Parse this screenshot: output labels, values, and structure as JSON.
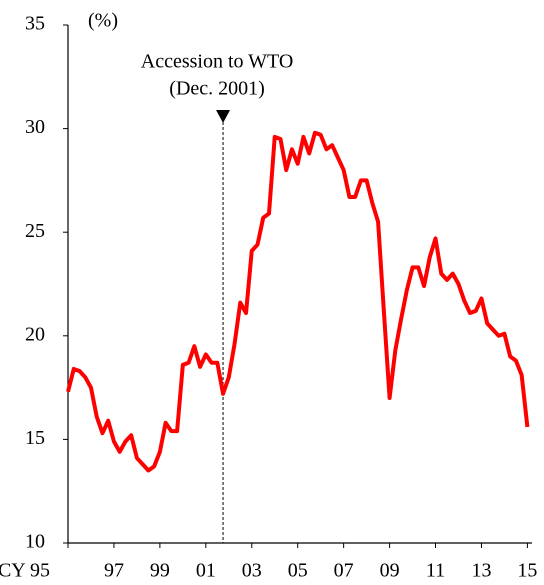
{
  "chart_data": {
    "type": "line",
    "ylabel": "(%)",
    "x": [
      1995,
      1995.25,
      1995.5,
      1995.75,
      1996,
      1996.25,
      1996.5,
      1996.75,
      1997,
      1997.25,
      1997.5,
      1997.75,
      1998,
      1998.25,
      1998.5,
      1998.75,
      1999,
      1999.25,
      1999.5,
      1999.75,
      2000,
      2000.25,
      2000.5,
      2000.75,
      2001,
      2001.25,
      2001.5,
      2001.75,
      2002,
      2002.25,
      2002.5,
      2002.75,
      2003,
      2003.25,
      2003.5,
      2003.75,
      2004,
      2004.25,
      2004.5,
      2004.75,
      2005,
      2005.25,
      2005.5,
      2005.75,
      2006,
      2006.25,
      2006.5,
      2006.75,
      2007,
      2007.25,
      2007.5,
      2007.75,
      2008,
      2008.25,
      2008.5,
      2008.75,
      2009,
      2009.25,
      2009.5,
      2009.75,
      2010,
      2010.25,
      2010.5,
      2010.75,
      2011,
      2011.25,
      2011.5,
      2011.75,
      2012,
      2012.25,
      2012.5,
      2012.75,
      2013,
      2013.25,
      2013.5,
      2013.75,
      2014,
      2014.25,
      2014.5,
      2014.75,
      2015
    ],
    "series": [
      {
        "color": "#ff0000",
        "values": [
          17.3,
          18.4,
          18.3,
          18.0,
          17.5,
          16.1,
          15.3,
          15.9,
          14.9,
          14.4,
          14.9,
          15.2,
          14.1,
          13.8,
          13.5,
          13.7,
          14.4,
          15.8,
          15.4,
          15.4,
          18.6,
          18.7,
          19.5,
          18.5,
          19.1,
          18.7,
          18.7,
          17.2,
          18.0,
          19.6,
          21.6,
          21.1,
          24.1,
          24.4,
          25.7,
          25.9,
          29.6,
          29.5,
          28.0,
          29.0,
          28.3,
          29.6,
          28.8,
          29.8,
          29.7,
          29.0,
          29.2,
          28.6,
          28.0,
          26.7,
          26.7,
          27.5,
          27.5,
          26.4,
          25.5,
          21.2,
          17.0,
          19.3,
          20.8,
          22.2,
          23.3,
          23.3,
          22.4,
          23.8,
          24.7,
          23.0,
          22.7,
          23.0,
          22.5,
          21.7,
          21.1,
          21.2,
          21.8,
          20.6,
          20.3,
          20.0,
          20.1,
          19.0,
          18.8,
          18.1,
          15.6
        ]
      }
    ],
    "annotation": {
      "text": [
        "Accession to WTO",
        "(Dec. 2001)"
      ],
      "x": 2001.75
    },
    "xlim": [
      1995,
      2015.2
    ],
    "xticks": [
      {
        "value": 1995,
        "label": "CY 95"
      },
      {
        "value": 1997,
        "label": "97"
      },
      {
        "value": 1999,
        "label": "99"
      },
      {
        "value": 2001,
        "label": "01"
      },
      {
        "value": 2003,
        "label": "03"
      },
      {
        "value": 2005,
        "label": "05"
      },
      {
        "value": 2007,
        "label": "07"
      },
      {
        "value": 2009,
        "label": "09"
      },
      {
        "value": 2011,
        "label": "11"
      },
      {
        "value": 2013,
        "label": "13"
      },
      {
        "value": 2015,
        "label": "15"
      }
    ],
    "ylim": [
      10,
      35
    ],
    "yticks": [
      10,
      15,
      20,
      25,
      30,
      35
    ],
    "grid": false
  }
}
